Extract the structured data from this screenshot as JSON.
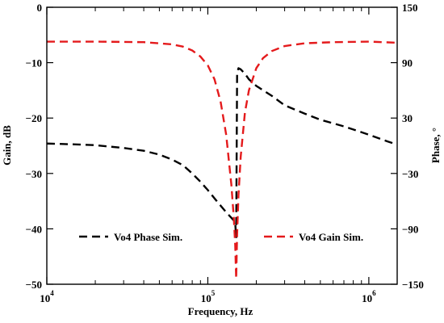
{
  "chart_data": {
    "type": "line",
    "xlabel": "Frequency, Hz",
    "ylabel_left": "Gain, dB",
    "ylabel_right": "Phase, °",
    "x_scale": "log",
    "xlim": [
      10000,
      1500000
    ],
    "ylim_left": [
      -50,
      0
    ],
    "ylim_right": [
      -150,
      150
    ],
    "x_ticks": [
      {
        "value": 10000,
        "base": "10",
        "exp": "4"
      },
      {
        "value": 100000,
        "base": "10",
        "exp": "5"
      },
      {
        "value": 1000000,
        "base": "10",
        "exp": "6"
      }
    ],
    "y_left_ticks": [
      {
        "value": 0,
        "label": "0"
      },
      {
        "value": -10,
        "label": "−10"
      },
      {
        "value": -20,
        "label": "−20"
      },
      {
        "value": -30,
        "label": "−30"
      },
      {
        "value": -40,
        "label": "−40"
      },
      {
        "value": -50,
        "label": "−50"
      }
    ],
    "y_right_ticks": [
      {
        "value": 150,
        "label": "150"
      },
      {
        "value": 90,
        "label": "90"
      },
      {
        "value": 30,
        "label": "30"
      },
      {
        "value": -30,
        "label": "−30"
      },
      {
        "value": -90,
        "label": "−90"
      },
      {
        "value": -150,
        "label": "−150"
      }
    ],
    "legend": [
      {
        "name": "Vo4 Phase Sim.",
        "color": "#000000"
      },
      {
        "name": "Vo4 Gain Sim.",
        "color": "#e41a1c"
      }
    ],
    "series": [
      {
        "name": "Vo4 Phase Sim.",
        "axis": "right",
        "color": "#000000",
        "x": [
          10000,
          15000,
          20000,
          30000,
          40000,
          50000,
          60000,
          70000,
          80000,
          90000,
          100000,
          110000,
          120000,
          130000,
          140000,
          145000,
          148000,
          150000,
          152000,
          155000,
          160000,
          170000,
          180000,
          200000,
          250000,
          300000,
          400000,
          500000,
          700000,
          1000000,
          1300000,
          1500000
        ],
        "y": [
          2.4,
          1.5,
          0.6,
          -2.4,
          -5.4,
          -9.6,
          -15,
          -21,
          -30,
          -39,
          -48,
          -57,
          -64.8,
          -72,
          -78,
          -81,
          -84,
          -100,
          78,
          84,
          82.8,
          78,
          72,
          64.8,
          54,
          43.8,
          34.8,
          28.2,
          21,
          12,
          4.8,
          1.2
        ]
      },
      {
        "name": "Vo4 Gain Sim.",
        "axis": "left",
        "color": "#e41a1c",
        "x": [
          10000,
          20000,
          40000,
          60000,
          70000,
          80000,
          90000,
          100000,
          110000,
          120000,
          130000,
          140000,
          145000,
          148000,
          150000,
          152000,
          155000,
          160000,
          170000,
          180000,
          200000,
          220000,
          250000,
          300000,
          400000,
          600000,
          1000000,
          1500000
        ],
        "y": [
          -6.2,
          -6.2,
          -6.3,
          -6.7,
          -7.1,
          -7.8,
          -8.9,
          -10.5,
          -13,
          -17,
          -23,
          -32,
          -38,
          -43,
          -49,
          -41,
          -34,
          -27,
          -19,
          -15,
          -11,
          -9.2,
          -7.9,
          -7.0,
          -6.5,
          -6.3,
          -6.2,
          -6.4
        ]
      }
    ]
  }
}
